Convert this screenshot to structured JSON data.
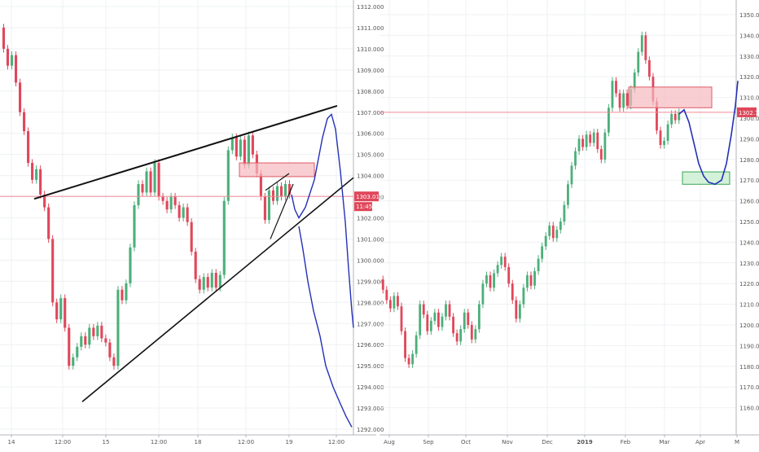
{
  "colors": {
    "up": "#4caf7a",
    "down": "#e0475a",
    "trendline": "#111111",
    "projection": "#2330b8",
    "zone_fill": "#f7b9bf",
    "zone_stroke": "#e05a66",
    "target_fill": "#c9efcf",
    "target_stroke": "#3aa655",
    "grid": "#eef0f3",
    "axis_text": "#555555",
    "price_line": "#f08a95",
    "price_tag": "#e0475a"
  },
  "chart_data": [
    {
      "type": "candlestick",
      "title": "",
      "xlabel": "",
      "ylabel": "",
      "grid": true,
      "y_ticks": [
        "1292.000",
        "1293.000",
        "1294.000",
        "1295.000",
        "1296.000",
        "1297.000",
        "1298.000",
        "1299.000",
        "1300.000",
        "1301.000",
        "1302.000",
        "1303.000",
        "1304.000",
        "1305.000",
        "1306.000",
        "1307.000",
        "1308.000",
        "1309.000",
        "1310.000",
        "1311.000",
        "1312.000"
      ],
      "ylim": [
        1291.8,
        1312.2
      ],
      "x_ticks": [
        "14",
        "12:00",
        "15",
        "12:00",
        "18",
        "12:00",
        "19",
        "12:00"
      ],
      "last_price": "1303.014",
      "countdown": "11:45",
      "candles_approx": [
        {
          "o": 1311.0,
          "c": 1310.0
        },
        {
          "o": 1310.0,
          "c": 1309.2
        },
        {
          "o": 1309.2,
          "c": 1309.7
        },
        {
          "o": 1309.7,
          "c": 1308.4
        },
        {
          "o": 1308.4,
          "c": 1307.0
        },
        {
          "o": 1307.0,
          "c": 1306.1
        },
        {
          "o": 1306.1,
          "c": 1304.6
        },
        {
          "o": 1304.6,
          "c": 1303.8
        },
        {
          "o": 1303.8,
          "c": 1304.3
        },
        {
          "o": 1304.3,
          "c": 1303.1
        },
        {
          "o": 1303.1,
          "c": 1302.5
        },
        {
          "o": 1302.5,
          "c": 1301.0
        },
        {
          "o": 1301.0,
          "c": 1298.0
        },
        {
          "o": 1298.0,
          "c": 1297.2
        },
        {
          "o": 1297.2,
          "c": 1298.2
        },
        {
          "o": 1298.2,
          "c": 1296.8
        },
        {
          "o": 1296.8,
          "c": 1295.0
        },
        {
          "o": 1295.0,
          "c": 1295.4
        },
        {
          "o": 1295.4,
          "c": 1295.9
        },
        {
          "o": 1295.9,
          "c": 1296.4
        },
        {
          "o": 1296.4,
          "c": 1296.0
        },
        {
          "o": 1296.0,
          "c": 1296.8
        },
        {
          "o": 1296.8,
          "c": 1296.4
        },
        {
          "o": 1296.4,
          "c": 1296.9
        },
        {
          "o": 1296.9,
          "c": 1296.3
        },
        {
          "o": 1296.3,
          "c": 1296.1
        },
        {
          "o": 1296.1,
          "c": 1295.4
        },
        {
          "o": 1295.4,
          "c": 1295.0
        },
        {
          "o": 1295.0,
          "c": 1298.6
        },
        {
          "o": 1298.6,
          "c": 1298.1
        },
        {
          "o": 1298.1,
          "c": 1298.9
        },
        {
          "o": 1298.9,
          "c": 1300.6
        },
        {
          "o": 1300.6,
          "c": 1302.6
        },
        {
          "o": 1302.6,
          "c": 1303.6
        },
        {
          "o": 1303.6,
          "c": 1303.2
        },
        {
          "o": 1303.2,
          "c": 1304.2
        },
        {
          "o": 1304.2,
          "c": 1303.2
        },
        {
          "o": 1303.2,
          "c": 1304.6
        },
        {
          "o": 1304.6,
          "c": 1303.0
        },
        {
          "o": 1303.0,
          "c": 1302.8
        },
        {
          "o": 1302.8,
          "c": 1302.4
        },
        {
          "o": 1302.4,
          "c": 1303.0
        },
        {
          "o": 1303.0,
          "c": 1302.6
        },
        {
          "o": 1302.6,
          "c": 1302.0
        },
        {
          "o": 1302.0,
          "c": 1302.5
        },
        {
          "o": 1302.5,
          "c": 1301.8
        },
        {
          "o": 1301.8,
          "c": 1300.4
        },
        {
          "o": 1300.4,
          "c": 1299.1
        },
        {
          "o": 1299.1,
          "c": 1298.6
        },
        {
          "o": 1298.6,
          "c": 1299.2
        },
        {
          "o": 1299.2,
          "c": 1298.7
        },
        {
          "o": 1298.7,
          "c": 1299.4
        },
        {
          "o": 1299.4,
          "c": 1298.7
        },
        {
          "o": 1298.7,
          "c": 1299.3
        },
        {
          "o": 1299.3,
          "c": 1302.8
        },
        {
          "o": 1302.8,
          "c": 1305.2
        },
        {
          "o": 1305.2,
          "c": 1305.8
        },
        {
          "o": 1305.8,
          "c": 1304.9
        },
        {
          "o": 1304.9,
          "c": 1305.7
        },
        {
          "o": 1305.7,
          "c": 1304.5
        },
        {
          "o": 1304.5,
          "c": 1305.9
        },
        {
          "o": 1305.9,
          "c": 1305.0
        },
        {
          "o": 1305.0,
          "c": 1304.1
        },
        {
          "o": 1304.1,
          "c": 1303.0
        },
        {
          "o": 1303.0,
          "c": 1301.9
        },
        {
          "o": 1301.9,
          "c": 1303.3
        },
        {
          "o": 1303.3,
          "c": 1302.8
        },
        {
          "o": 1302.8,
          "c": 1303.5
        },
        {
          "o": 1303.5,
          "c": 1303.0
        },
        {
          "o": 1303.0,
          "c": 1303.6
        },
        {
          "o": 1303.6,
          "c": 1303.1
        }
      ]
    },
    {
      "type": "candlestick",
      "title": "",
      "xlabel": "",
      "ylabel": "",
      "grid": true,
      "y_ticks": [
        "1160.00",
        "1170.00",
        "1180.00",
        "1190.00",
        "1200.00",
        "1210.00",
        "1220.00",
        "1230.00",
        "1240.00",
        "1250.00",
        "1260.00",
        "1270.00",
        "1280.00",
        "1290.00",
        "1300.00",
        "1310.00",
        "1320.00",
        "1330.00",
        "1340.00",
        "1350.00"
      ],
      "ylim": [
        1154,
        1356
      ],
      "x_ticks": [
        "Aug",
        "Sep",
        "Oct",
        "Nov",
        "Dec",
        "2019",
        "Feb",
        "Mar",
        "Apr",
        "M"
      ],
      "last_price": "1302.79",
      "candles_approx": [
        {
          "o": 1222,
          "c": 1217
        },
        {
          "o": 1217,
          "c": 1212
        },
        {
          "o": 1212,
          "c": 1208
        },
        {
          "o": 1208,
          "c": 1214
        },
        {
          "o": 1214,
          "c": 1209
        },
        {
          "o": 1209,
          "c": 1197
        },
        {
          "o": 1197,
          "c": 1184
        },
        {
          "o": 1184,
          "c": 1181
        },
        {
          "o": 1181,
          "c": 1186
        },
        {
          "o": 1186,
          "c": 1195
        },
        {
          "o": 1195,
          "c": 1210
        },
        {
          "o": 1210,
          "c": 1205
        },
        {
          "o": 1205,
          "c": 1197
        },
        {
          "o": 1197,
          "c": 1202
        },
        {
          "o": 1202,
          "c": 1206
        },
        {
          "o": 1206,
          "c": 1199
        },
        {
          "o": 1199,
          "c": 1204
        },
        {
          "o": 1204,
          "c": 1210
        },
        {
          "o": 1210,
          "c": 1204
        },
        {
          "o": 1204,
          "c": 1196
        },
        {
          "o": 1196,
          "c": 1192
        },
        {
          "o": 1192,
          "c": 1198
        },
        {
          "o": 1198,
          "c": 1206
        },
        {
          "o": 1206,
          "c": 1200
        },
        {
          "o": 1200,
          "c": 1193
        },
        {
          "o": 1193,
          "c": 1198
        },
        {
          "o": 1198,
          "c": 1210
        },
        {
          "o": 1210,
          "c": 1220
        },
        {
          "o": 1220,
          "c": 1224
        },
        {
          "o": 1224,
          "c": 1218
        },
        {
          "o": 1218,
          "c": 1225
        },
        {
          "o": 1225,
          "c": 1229
        },
        {
          "o": 1229,
          "c": 1233
        },
        {
          "o": 1233,
          "c": 1228
        },
        {
          "o": 1228,
          "c": 1220
        },
        {
          "o": 1220,
          "c": 1212
        },
        {
          "o": 1212,
          "c": 1203
        },
        {
          "o": 1203,
          "c": 1210
        },
        {
          "o": 1210,
          "c": 1218
        },
        {
          "o": 1218,
          "c": 1224
        },
        {
          "o": 1224,
          "c": 1219
        },
        {
          "o": 1219,
          "c": 1226
        },
        {
          "o": 1226,
          "c": 1232
        },
        {
          "o": 1232,
          "c": 1238
        },
        {
          "o": 1238,
          "c": 1243
        },
        {
          "o": 1243,
          "c": 1248
        },
        {
          "o": 1248,
          "c": 1242
        },
        {
          "o": 1242,
          "c": 1246
        },
        {
          "o": 1246,
          "c": 1250
        },
        {
          "o": 1250,
          "c": 1258
        },
        {
          "o": 1258,
          "c": 1268
        },
        {
          "o": 1268,
          "c": 1277
        },
        {
          "o": 1277,
          "c": 1284
        },
        {
          "o": 1284,
          "c": 1290
        },
        {
          "o": 1290,
          "c": 1286
        },
        {
          "o": 1286,
          "c": 1292
        },
        {
          "o": 1292,
          "c": 1288
        },
        {
          "o": 1288,
          "c": 1293
        },
        {
          "o": 1293,
          "c": 1285
        },
        {
          "o": 1285,
          "c": 1280
        },
        {
          "o": 1280,
          "c": 1293
        },
        {
          "o": 1293,
          "c": 1305
        },
        {
          "o": 1305,
          "c": 1318
        },
        {
          "o": 1318,
          "c": 1312
        },
        {
          "o": 1312,
          "c": 1305
        },
        {
          "o": 1305,
          "c": 1312
        },
        {
          "o": 1312,
          "c": 1306
        },
        {
          "o": 1306,
          "c": 1314
        },
        {
          "o": 1314,
          "c": 1322
        },
        {
          "o": 1322,
          "c": 1332
        },
        {
          "o": 1332,
          "c": 1340
        },
        {
          "o": 1340,
          "c": 1328
        },
        {
          "o": 1328,
          "c": 1320
        },
        {
          "o": 1320,
          "c": 1308
        },
        {
          "o": 1308,
          "c": 1294
        },
        {
          "o": 1294,
          "c": 1287
        },
        {
          "o": 1287,
          "c": 1289
        },
        {
          "o": 1289,
          "c": 1297
        },
        {
          "o": 1297,
          "c": 1302
        },
        {
          "o": 1302,
          "c": 1299
        },
        {
          "o": 1299,
          "c": 1302.8
        }
      ]
    }
  ]
}
